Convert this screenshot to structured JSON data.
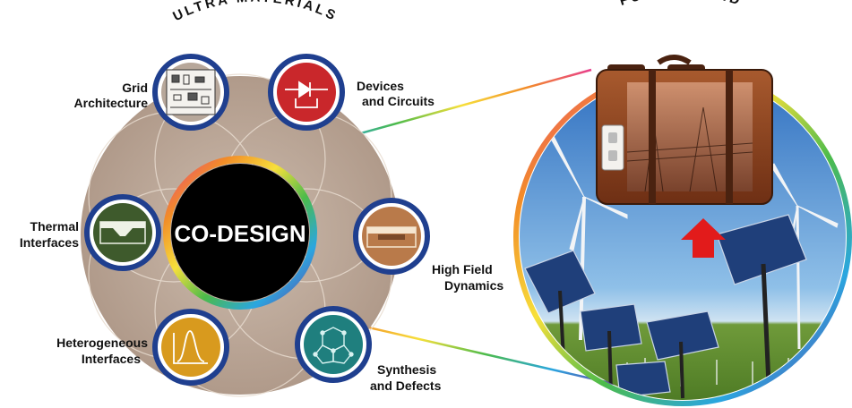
{
  "title_left": "ULTRA MATERIALS",
  "title_right": "FUTURE GRID",
  "center_label": "CO-DESIGN",
  "nodes": [
    {
      "id": "grid-architecture",
      "lines": [
        "Grid",
        "Architecture"
      ],
      "icon": "circuit-schematic-icon",
      "fill": "#f4f2ee"
    },
    {
      "id": "devices-and-circuits",
      "lines": [
        "Devices",
        "and Circuits"
      ],
      "icon": "diode-circuit-icon",
      "fill": "#c9272b"
    },
    {
      "id": "high-field-dynamics",
      "lines": [
        "High Field",
        "Dynamics"
      ],
      "icon": "layered-block-icon",
      "fill": "#b97a4a"
    },
    {
      "id": "synthesis-and-defects",
      "lines": [
        "Synthesis",
        "and Defects"
      ],
      "icon": "molecular-network-icon",
      "fill": "#1f7f7e"
    },
    {
      "id": "heterogeneous-interfaces",
      "lines": [
        "Heterogeneous",
        "Interfaces"
      ],
      "icon": "peak-curve-icon",
      "fill": "#d89a1e"
    },
    {
      "id": "thermal-interfaces",
      "lines": [
        "Thermal",
        "Interfaces"
      ],
      "icon": "layer-trough-icon",
      "fill": "#3e5a2c"
    }
  ],
  "colors": {
    "ring_blue": "#1f3f8f",
    "disc": "#bca99a",
    "sky": "#3b7fc9",
    "suitcase": "#8a3f1e",
    "arrow": "#e21b1b"
  }
}
